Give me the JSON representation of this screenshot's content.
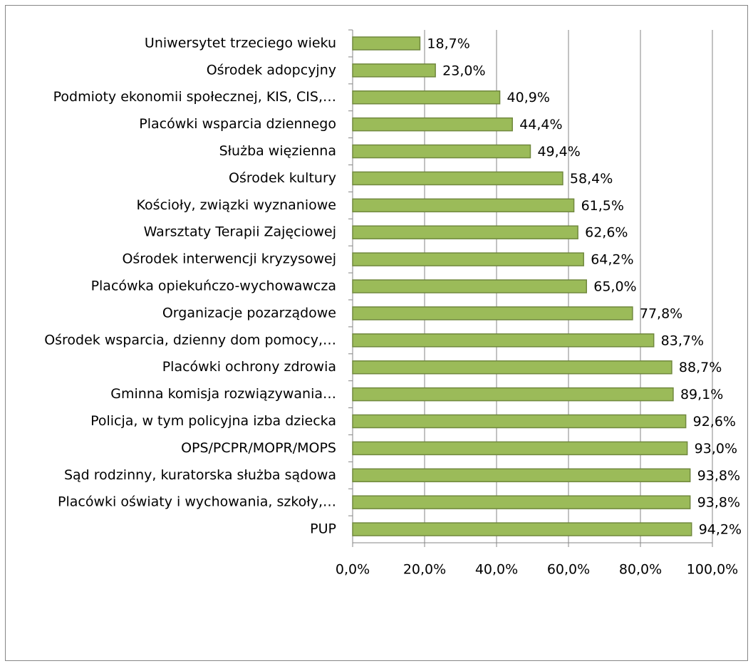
{
  "chart_data": {
    "type": "bar",
    "orientation": "horizontal",
    "categories": [
      "Uniwersytet trzeciego wieku",
      "Ośrodek adopcyjny",
      "Podmioty ekonomii społecznej, KIS, CIS,…",
      "Placówki wsparcia dziennego",
      "Służba więzienna",
      "Ośrodek kultury",
      "Kościoły, związki wyznaniowe",
      "Warsztaty Terapii Zajęciowej",
      "Ośrodek interwencji kryzysowej",
      "Placówka opiekuńczo-wychowawcza",
      "Organizacje pozarządowe",
      "Ośrodek wsparcia, dzienny dom pomocy,…",
      "Placówki ochrony zdrowia",
      "Gminna komisja rozwiązywania…",
      "Policja, w tym policyjna izba dziecka",
      "OPS/PCPR/MOPR/MOPS",
      "Sąd rodzinny,  kuratorska służba sądowa",
      "Placówki oświaty i wychowania, szkoły,…",
      "PUP"
    ],
    "values": [
      18.7,
      23.0,
      40.9,
      44.4,
      49.4,
      58.4,
      61.5,
      62.6,
      64.2,
      65.0,
      77.8,
      83.7,
      88.7,
      89.1,
      92.6,
      93.0,
      93.8,
      93.8,
      94.2
    ],
    "value_labels": [
      "18,7%",
      "23,0%",
      "40,9%",
      "44,4%",
      "49,4%",
      "58,4%",
      "61,5%",
      "62,6%",
      "64,2%",
      "65,0%",
      "77,8%",
      "83,7%",
      "88,7%",
      "89,1%",
      "92,6%",
      "93,0%",
      "93,8%",
      "93,8%",
      "94,2%"
    ],
    "color": "#9bbb59",
    "xlim": [
      0,
      100
    ],
    "xticks": [
      {
        "value": 0,
        "label": "0,0%"
      },
      {
        "value": 20,
        "label": "20,0%"
      },
      {
        "value": 40,
        "label": "40,0%"
      },
      {
        "value": 60,
        "label": "60,0%"
      },
      {
        "value": 80,
        "label": "80,0%"
      },
      {
        "value": 100,
        "label": "100,0%"
      }
    ],
    "grid": true
  }
}
